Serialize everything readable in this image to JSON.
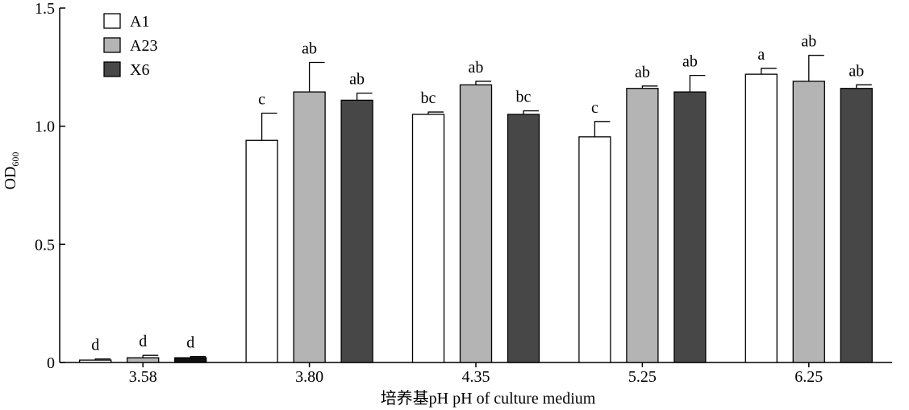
{
  "chart_data": {
    "type": "bar",
    "categories": [
      "3.58",
      "3.80",
      "4.35",
      "5.25",
      "6.25"
    ],
    "series": [
      {
        "name": "A1",
        "color": "#ffffff",
        "values": [
          0.01,
          0.94,
          1.05,
          0.955,
          1.22
        ],
        "errors": [
          0.005,
          0.115,
          0.01,
          0.065,
          0.025
        ],
        "letters": [
          "d",
          "c",
          "bc",
          "c",
          "a"
        ]
      },
      {
        "name": "A23",
        "color": "#b4b4b4",
        "values": [
          0.02,
          1.145,
          1.175,
          1.16,
          1.19
        ],
        "errors": [
          0.01,
          0.125,
          0.015,
          0.01,
          0.11
        ],
        "letters": [
          "d",
          "ab",
          "ab",
          "ab",
          "ab"
        ]
      },
      {
        "name": "X6",
        "color": "#474747",
        "values": [
          0.02,
          1.11,
          1.05,
          1.145,
          1.16
        ],
        "errors": [
          0.005,
          0.03,
          0.015,
          0.07,
          0.015
        ],
        "letters": [
          "d",
          "ab",
          "bc",
          "ab",
          "ab"
        ]
      }
    ],
    "xlabel": "培养基pH pH of culture medium",
    "ylabel_main": "OD",
    "ylabel_sub": "600",
    "ylim": [
      0,
      1.5
    ],
    "yticks": [
      "0",
      "0.5",
      "1.0",
      "1.5"
    ],
    "ytick_values": [
      0,
      0.5,
      1.0,
      1.5
    ],
    "grid": false,
    "legend_position": "top-left"
  }
}
